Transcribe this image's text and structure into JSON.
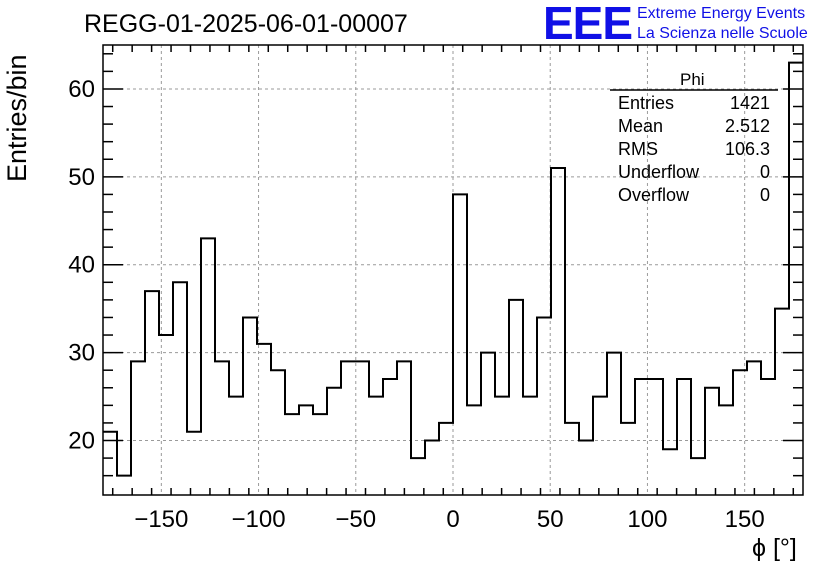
{
  "header": {
    "title": "REGG-01-2025-06-01-00007",
    "logo_text": "EEE",
    "logo_line1": "Extreme Energy Events",
    "logo_line2": "La Scienza nelle Scuole"
  },
  "stats": {
    "name": "Phi",
    "rows": [
      {
        "label": "Entries",
        "value": "1421"
      },
      {
        "label": "Mean",
        "value": "2.512"
      },
      {
        "label": "RMS",
        "value": "106.3"
      },
      {
        "label": "Underflow",
        "value": "0"
      },
      {
        "label": "Overflow",
        "value": "0"
      }
    ]
  },
  "colors": {
    "logo": "#1010e6",
    "line": "#000000",
    "grid": "#9a9a9a"
  },
  "chart_data": {
    "type": "bar",
    "histogram": true,
    "title": "REGG-01-2025-06-01-00007",
    "xlabel": "ϕ [°]",
    "ylabel": "Entries/bin",
    "xlim": [
      -180,
      180
    ],
    "ylim": [
      13.8,
      65
    ],
    "bin_width": 7.2,
    "grid": true,
    "xticks": [
      -150,
      -100,
      -50,
      0,
      50,
      100,
      150
    ],
    "yticks": [
      20,
      30,
      40,
      50,
      60
    ],
    "xtick_labels": [
      "−150",
      "−100",
      "−50",
      "0",
      "50",
      "100",
      "150"
    ],
    "ytick_labels": [
      "20",
      "30",
      "40",
      "50",
      "60"
    ],
    "values": [
      21,
      16,
      29,
      37,
      32,
      38,
      21,
      43,
      29,
      25,
      34,
      31,
      28,
      23,
      24,
      23,
      26,
      29,
      29,
      25,
      27,
      29,
      18,
      20,
      22,
      48,
      24,
      30,
      25,
      36,
      25,
      34,
      51,
      22,
      20,
      25,
      30,
      22,
      27,
      27,
      19,
      27,
      18,
      26,
      24,
      28,
      29,
      27,
      35,
      63
    ]
  }
}
